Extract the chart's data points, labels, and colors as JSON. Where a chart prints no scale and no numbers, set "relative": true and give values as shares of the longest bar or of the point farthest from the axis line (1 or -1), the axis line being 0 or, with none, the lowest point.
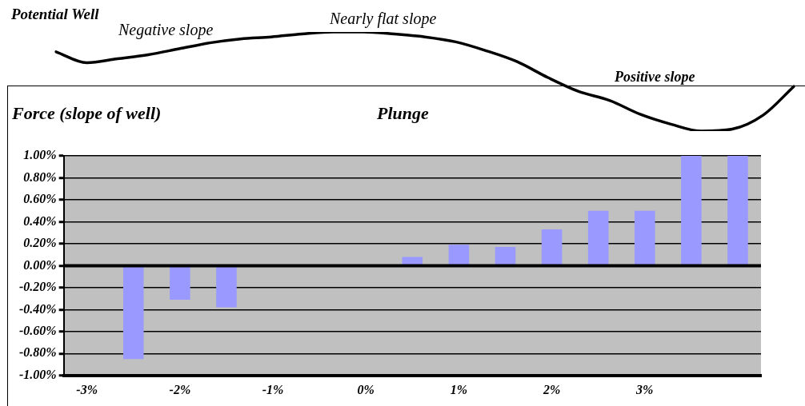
{
  "chart_data": [
    {
      "type": "line",
      "relative": true,
      "color": "#000000",
      "marker": "none",
      "line_style": "solid",
      "annotations": [
        "Potential Well",
        "Negative slope",
        "Nearly flat slope",
        "Positive slope"
      ],
      "categories": [
        null,
        null,
        null,
        null,
        null,
        null,
        null,
        null,
        null,
        null,
        null,
        null,
        null,
        null,
        null,
        null,
        null,
        null,
        null,
        null,
        null,
        null,
        null,
        null,
        null
      ],
      "values": [
        0.8,
        0.69,
        0.73,
        0.77,
        0.83,
        0.89,
        0.93,
        0.95,
        0.98,
        1.0,
        1.0,
        0.98,
        0.95,
        0.9,
        0.81,
        0.7,
        0.54,
        0.4,
        0.31,
        0.17,
        0.07,
        0,
        0.02,
        0.16,
        0.45
      ]
    },
    {
      "type": "bar",
      "title": "Plunge",
      "ylabel": "Force (slope of well)",
      "categories": [
        "-3%",
        null,
        "-2%",
        null,
        "-1%",
        null,
        "0%",
        null,
        "1%",
        null,
        "2%",
        null,
        "3%",
        null,
        null
      ],
      "values": [
        null,
        -0.85,
        -0.31,
        -0.38,
        0,
        0,
        0,
        0.08,
        0.19,
        0.17,
        0.33,
        0.5,
        0.5,
        1.0,
        1.0
      ],
      "color": "#9999ff",
      "ylim": [
        -1,
        1
      ],
      "yticks": [
        {
          "value": -1,
          "label": "-1.00%"
        },
        {
          "value": -0.8,
          "label": "-0.80%"
        },
        {
          "value": -0.6,
          "label": "-0.60%"
        },
        {
          "value": -0.4,
          "label": "-0.40%"
        },
        {
          "value": -0.2,
          "label": "-0.20%"
        },
        {
          "value": 0,
          "label": "0.00%"
        },
        {
          "value": 0.2,
          "label": "0.20%"
        },
        {
          "value": 0.4,
          "label": "0.40%"
        },
        {
          "value": 0.6,
          "label": "0.60%"
        },
        {
          "value": 0.8,
          "label": "0.80%"
        },
        {
          "value": 1,
          "label": "1.00%"
        }
      ],
      "grid": "y",
      "legend": false
    }
  ]
}
